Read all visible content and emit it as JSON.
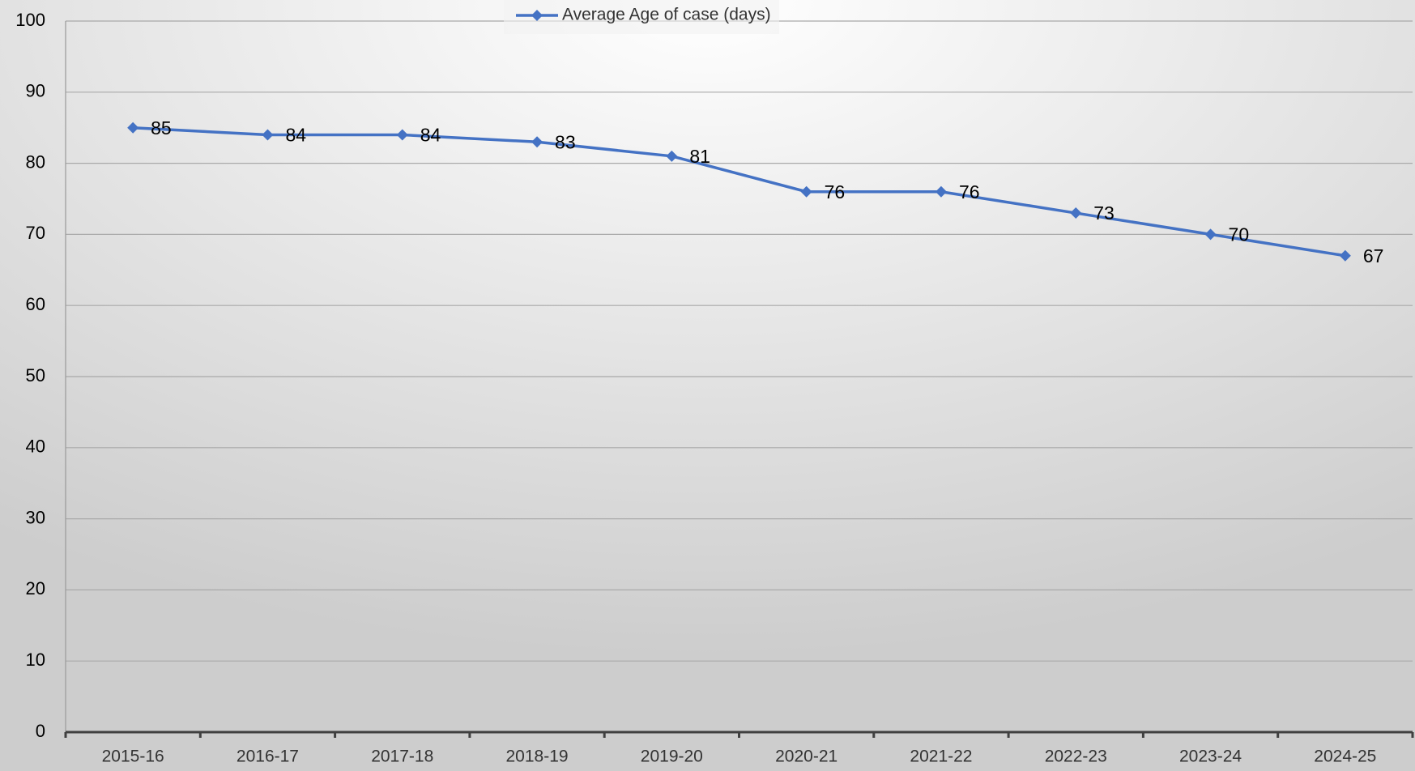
{
  "chart_data": {
    "type": "line",
    "categories": [
      "2015-16",
      "2016-17",
      "2017-18",
      "2018-19",
      "2019-20",
      "2020-21",
      "2021-22",
      "2022-23",
      "2023-24",
      "2024-25"
    ],
    "series": [
      {
        "name": "Average Age of case (days)",
        "color": "#4472c4",
        "values": [
          85,
          84,
          84,
          83,
          81,
          76,
          76,
          73,
          70,
          67
        ]
      }
    ],
    "ylim": [
      0,
      100
    ],
    "yticks": [
      0,
      10,
      20,
      30,
      40,
      50,
      60,
      70,
      80,
      90,
      100
    ],
    "grid": true,
    "legend": "top"
  }
}
